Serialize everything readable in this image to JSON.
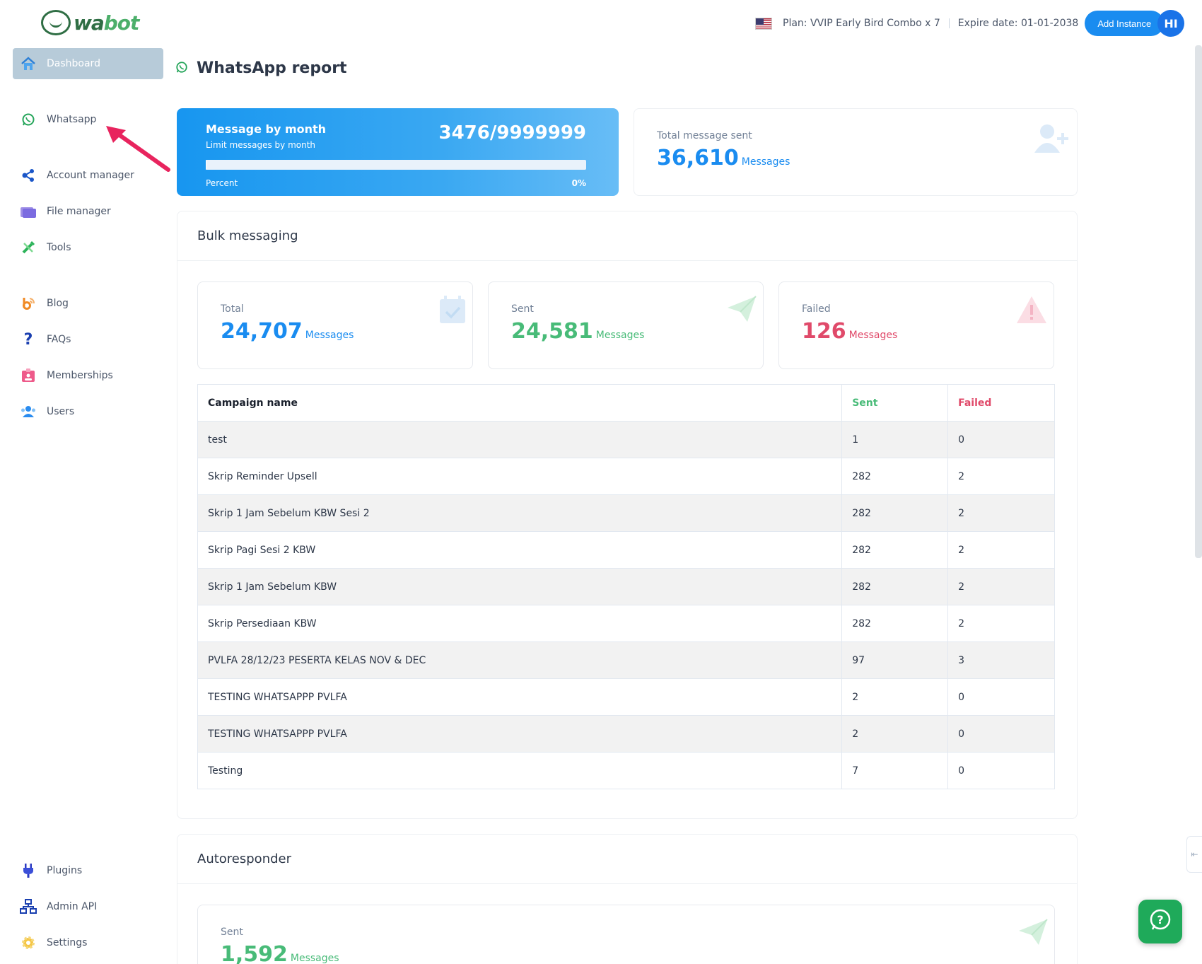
{
  "brand": {
    "logo_text_a": "wa",
    "logo_text_b": "bot"
  },
  "sidebar": {
    "items": [
      {
        "label": "Dashboard",
        "icon": "home-icon"
      },
      {
        "label": "Whatsapp",
        "icon": "whatsapp-icon"
      },
      {
        "label": "Account manager",
        "icon": "share-nodes-icon"
      },
      {
        "label": "File manager",
        "icon": "folder-icon"
      },
      {
        "label": "Tools",
        "icon": "tools-icon"
      },
      {
        "label": "Blog",
        "icon": "blog-icon"
      },
      {
        "label": "FAQs",
        "icon": "question-icon"
      },
      {
        "label": "Memberships",
        "icon": "id-badge-icon"
      },
      {
        "label": "Users",
        "icon": "users-icon"
      },
      {
        "label": "Plugins",
        "icon": "plug-icon"
      },
      {
        "label": "Admin API",
        "icon": "sitemap-icon"
      },
      {
        "label": "Settings",
        "icon": "gear-icon"
      }
    ]
  },
  "header": {
    "plan": "Plan: VVIP Early Bird Combo x 7",
    "expire": "Expire date: 01-01-2038",
    "add_instance": "Add Instance",
    "avatar_initials": "HI"
  },
  "page": {
    "title": "WhatsApp report"
  },
  "month_card": {
    "title": "Message by month",
    "subtitle": "Limit messages by month",
    "usage": "3476/9999999",
    "percent_label": "Percent",
    "percent_value": "0%",
    "progress_fraction": 0.0003
  },
  "total_card": {
    "label": "Total message sent",
    "value": "36,610",
    "unit": "Messages"
  },
  "bulk": {
    "title": "Bulk messaging",
    "total": {
      "label": "Total",
      "value": "24,707",
      "unit": "Messages"
    },
    "sent": {
      "label": "Sent",
      "value": "24,581",
      "unit": "Messages"
    },
    "failed": {
      "label": "Failed",
      "value": "126",
      "unit": "Messages"
    },
    "table": {
      "headers": {
        "name": "Campaign name",
        "sent": "Sent",
        "failed": "Failed"
      },
      "rows": [
        {
          "name": "test",
          "sent": "1",
          "failed": "0"
        },
        {
          "name": "Skrip Reminder Upsell",
          "sent": "282",
          "failed": "2"
        },
        {
          "name": "Skrip 1 Jam Sebelum KBW Sesi 2",
          "sent": "282",
          "failed": "2"
        },
        {
          "name": "Skrip Pagi Sesi 2 KBW",
          "sent": "282",
          "failed": "2"
        },
        {
          "name": "Skrip 1 Jam Sebelum KBW",
          "sent": "282",
          "failed": "2"
        },
        {
          "name": "Skrip Persediaan KBW",
          "sent": "282",
          "failed": "2"
        },
        {
          "name": "PVLFA 28/12/23 PESERTA KELAS NOV & DEC",
          "sent": "97",
          "failed": "3"
        },
        {
          "name": "TESTING WHATSAPPP PVLFA",
          "sent": "2",
          "failed": "0"
        },
        {
          "name": "TESTING WHATSAPPP PVLFA",
          "sent": "2",
          "failed": "0"
        },
        {
          "name": "Testing",
          "sent": "7",
          "failed": "0"
        }
      ]
    }
  },
  "autoresponder": {
    "title": "Autoresponder",
    "sent": {
      "label": "Sent",
      "value": "1,592",
      "unit": "Messages"
    }
  },
  "colors": {
    "blue": "#1a8cf0",
    "green": "#48bb78",
    "red": "#e04a6a",
    "active_nav": "#b7cbd9"
  }
}
